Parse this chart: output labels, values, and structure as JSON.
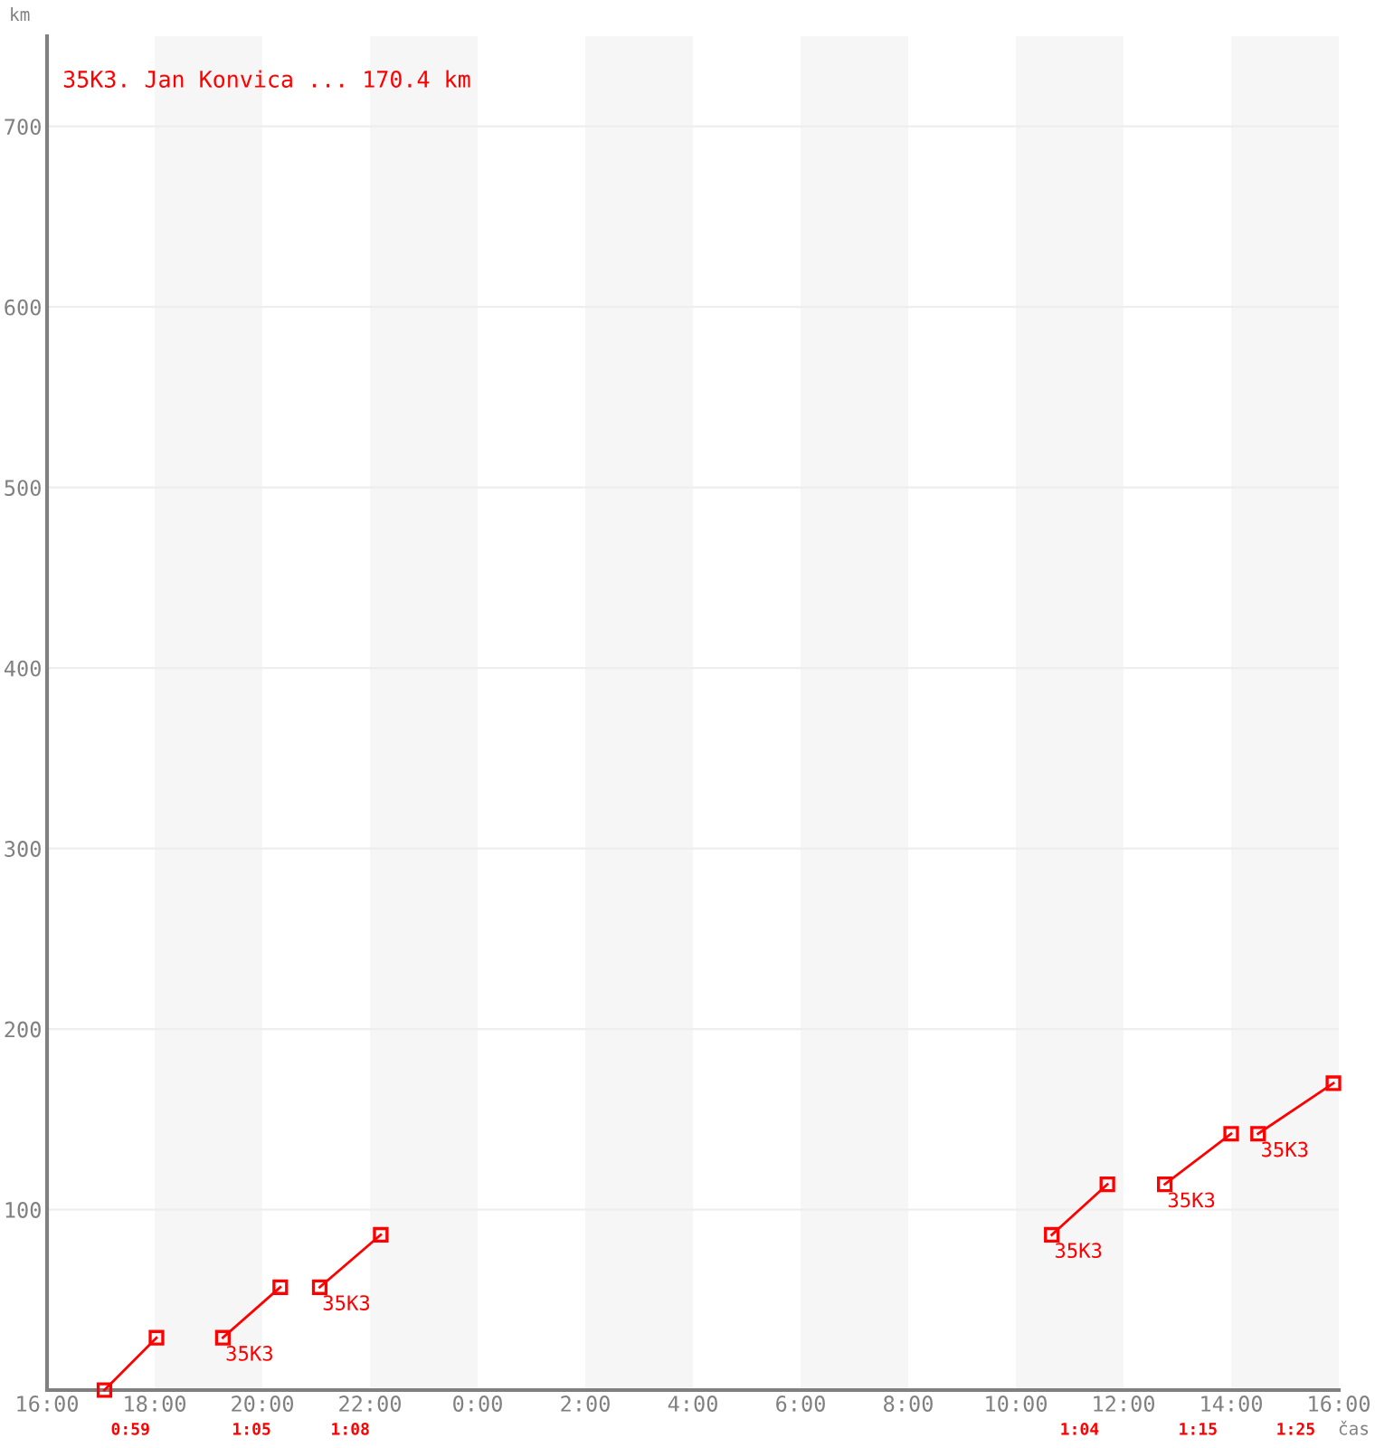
{
  "chart_data": {
    "type": "line",
    "title": "35K3. Jan Konvica ... 170.4 km",
    "xlabel": "čas",
    "ylabel": "km",
    "xlim": [
      "2000-01-01T16:00",
      "2000-01-02T16:00"
    ],
    "ylim": [
      0,
      750
    ],
    "xticks": [
      {
        "value": "2000-01-01T16:00",
        "label": "16:00"
      },
      {
        "value": "2000-01-01T18:00",
        "label": "18:00"
      },
      {
        "value": "2000-01-01T20:00",
        "label": "20:00"
      },
      {
        "value": "2000-01-01T22:00",
        "label": "22:00"
      },
      {
        "value": "2000-01-02T00:00",
        "label": "0:00"
      },
      {
        "value": "2000-01-02T02:00",
        "label": "2:00"
      },
      {
        "value": "2000-01-02T04:00",
        "label": "4:00"
      },
      {
        "value": "2000-01-02T06:00",
        "label": "6:00"
      },
      {
        "value": "2000-01-02T08:00",
        "label": "8:00"
      },
      {
        "value": "2000-01-02T10:00",
        "label": "10:00"
      },
      {
        "value": "2000-01-02T12:00",
        "label": "12:00"
      },
      {
        "value": "2000-01-02T14:00",
        "label": "14:00"
      },
      {
        "value": "2000-01-02T16:00",
        "label": "16:00"
      }
    ],
    "yticks": [
      100,
      200,
      300,
      400,
      500,
      600,
      700
    ],
    "grid": "y",
    "marker": "square",
    "line_style": "solid",
    "series": [
      {
        "color": "#ff0000",
        "x": [
          "2000-01-01T17:04",
          "2000-01-01T18:02"
        ],
        "values": [
          0,
          29
        ]
      },
      {
        "color": "#ff0000",
        "x": [
          "2000-01-01T19:16",
          "2000-01-01T20:20"
        ],
        "values": [
          29,
          57
        ]
      },
      {
        "color": "#ff0000",
        "x": [
          "2000-01-01T21:04",
          "2000-01-01T22:12"
        ],
        "values": [
          57,
          86
        ]
      },
      {
        "color": "#ff0000",
        "x": [
          "2000-01-02T10:40",
          "2000-01-02T11:42"
        ],
        "values": [
          86,
          114
        ]
      },
      {
        "color": "#ff0000",
        "x": [
          "2000-01-02T12:46",
          "2000-01-02T14:00"
        ],
        "values": [
          114,
          142
        ]
      },
      {
        "color": "#ff0000",
        "x": [
          "2000-01-02T14:30",
          "2000-01-02T15:54"
        ],
        "values": [
          142,
          170
        ]
      }
    ],
    "bands": [
      {
        "axis": "x",
        "from": "2000-01-01T18:00",
        "to": "2000-01-01T20:00",
        "color": "#f6f6f6"
      },
      {
        "axis": "x",
        "from": "2000-01-01T22:00",
        "to": "2000-01-02T00:00",
        "color": "#f6f6f6"
      },
      {
        "axis": "x",
        "from": "2000-01-02T02:00",
        "to": "2000-01-02T04:00",
        "color": "#f6f6f6"
      },
      {
        "axis": "x",
        "from": "2000-01-02T06:00",
        "to": "2000-01-02T08:00",
        "color": "#f6f6f6"
      },
      {
        "axis": "x",
        "from": "2000-01-02T10:00",
        "to": "2000-01-02T12:00",
        "color": "#f6f6f6"
      },
      {
        "axis": "x",
        "from": "2000-01-02T14:00",
        "to": "2000-01-02T16:00",
        "color": "#f6f6f6"
      }
    ],
    "annotations": [
      {
        "text": "35K3",
        "x": "2000-01-01T19:16",
        "y": 29
      },
      {
        "text": "35K3",
        "x": "2000-01-01T21:04",
        "y": 57
      },
      {
        "text": "35K3",
        "x": "2000-01-02T10:40",
        "y": 86
      },
      {
        "text": "35K3",
        "x": "2000-01-02T12:46",
        "y": 114
      },
      {
        "text": "35K3",
        "x": "2000-01-02T14:30",
        "y": 142
      },
      "0:59",
      "1:05",
      "1:08",
      "1:04",
      "1:15",
      "1:25"
    ]
  }
}
